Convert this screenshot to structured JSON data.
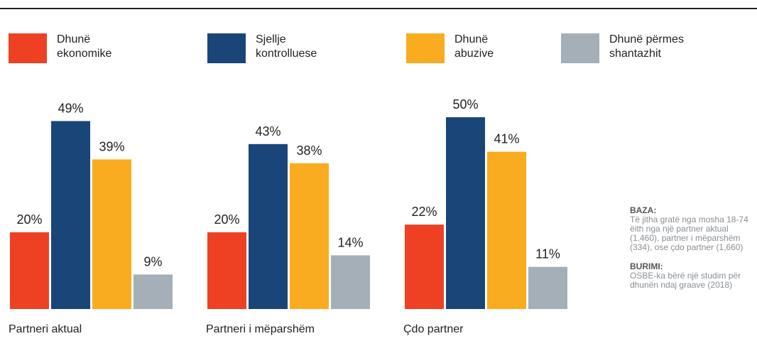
{
  "chart_data": {
    "type": "bar",
    "categories": [
      "Partneri aktual",
      "Partneri i mëparshëm",
      "Çdo partner"
    ],
    "series": [
      {
        "name": "Dhunë ekonomike",
        "color": "#ee4023",
        "values": [
          20,
          20,
          22
        ],
        "value_labels": [
          "20%",
          "20%",
          "22%"
        ]
      },
      {
        "name": "Sjellje kontrolluese",
        "color": "#1a4579",
        "values": [
          49,
          43,
          50
        ],
        "value_labels": [
          "49%",
          "43%",
          "50%"
        ]
      },
      {
        "name": "Dhunë abuzive",
        "color": "#f9ac1f",
        "values": [
          39,
          38,
          41
        ],
        "value_labels": [
          "39%",
          "38%",
          "41%"
        ]
      },
      {
        "name": "Dhunë përmes shantazhit",
        "color": "#a4afb7",
        "values": [
          9,
          14,
          11
        ],
        "value_labels": [
          "9%",
          "14%",
          "11%"
        ]
      }
    ],
    "notes": [
      {
        "heading": "BAZA:",
        "text": "Të jitha gratë nga mosha 18-74 ëith nga një partner aktual (1,460), partner i mëparshëm (334), ose çdo partner (1,660)"
      },
      {
        "heading": "BURIMI:",
        "text": "OSBE-ka bërë një studim për dhunën ndaj graave (2018)"
      }
    ]
  }
}
